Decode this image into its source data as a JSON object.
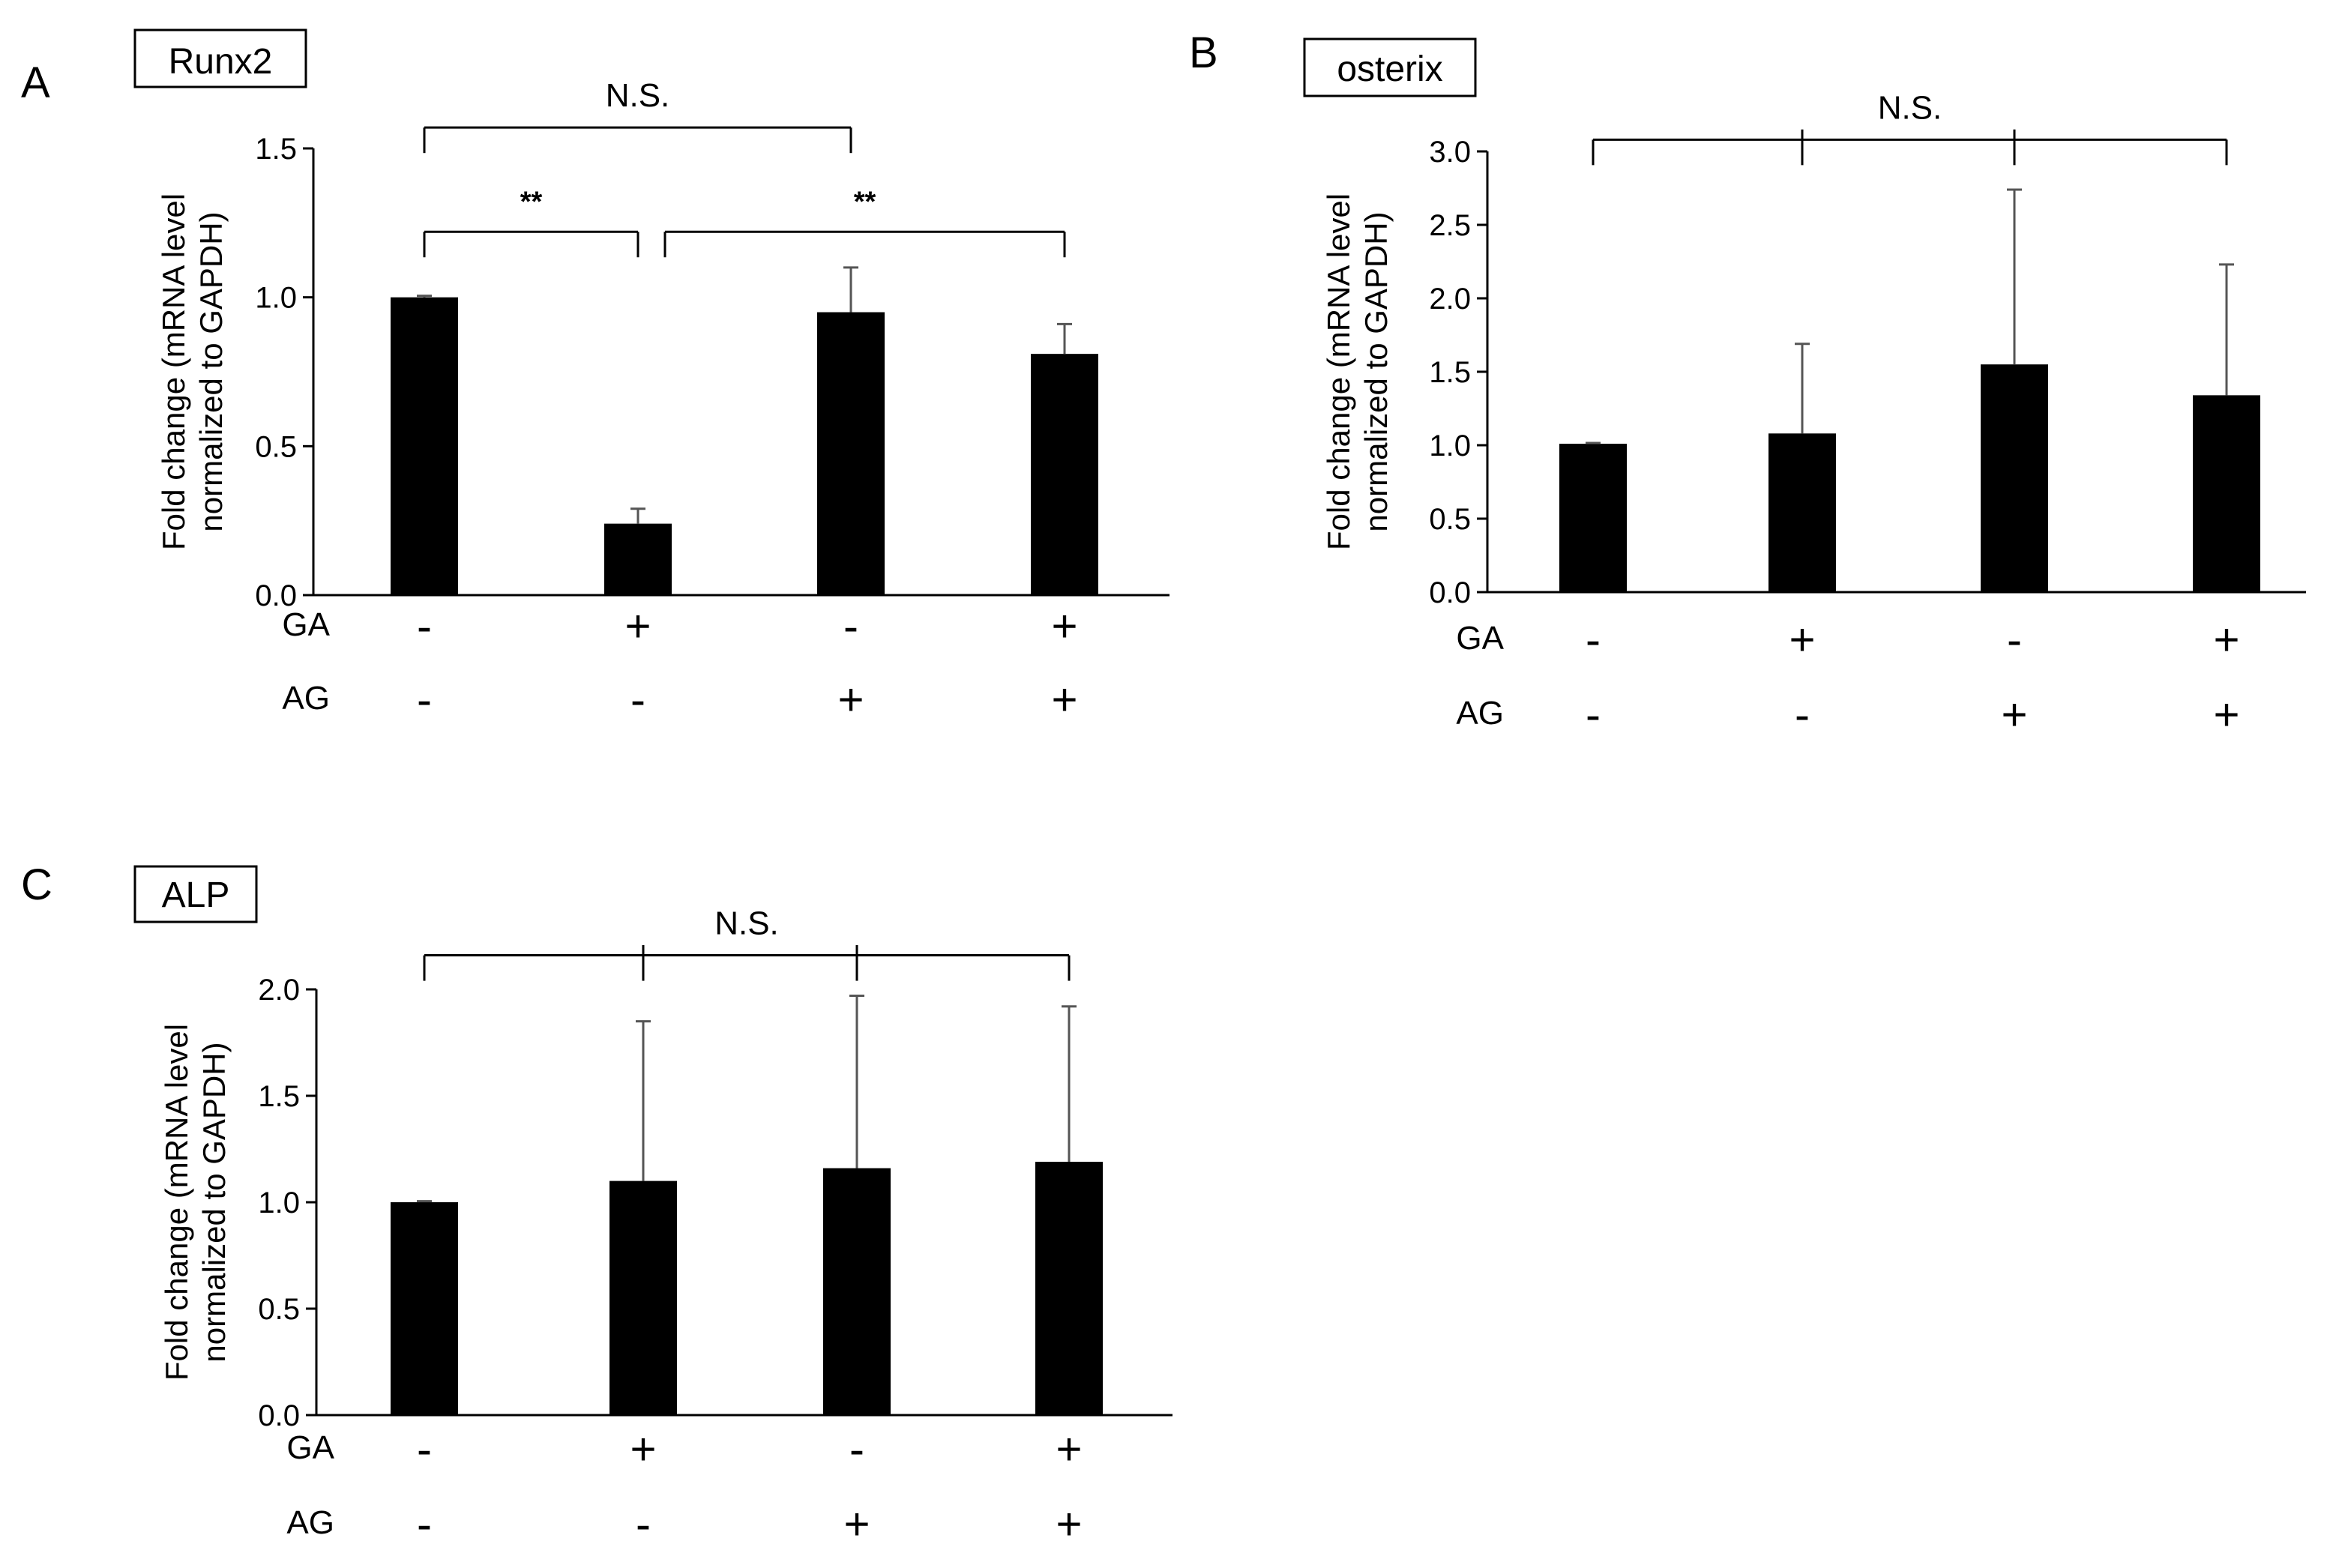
{
  "labels": {
    "row_ga": "GA",
    "row_ag": "AG"
  },
  "chart_data": [
    {
      "type": "bar",
      "panel": "A",
      "title": "Runx2",
      "xlabel": "",
      "ylabel": [
        "Fold change (mRNA level",
        "normalized to GAPDH)"
      ],
      "ylim": [
        0,
        1.5
      ],
      "yticks": [
        0.0,
        0.5,
        1.0,
        1.5
      ],
      "ytick_labels": [
        "0.0",
        "0.5",
        "1.0",
        "1.5"
      ],
      "conditions": {
        "GA": [
          "-",
          "+",
          "-",
          "+"
        ],
        "AG": [
          "-",
          "-",
          "+",
          "+"
        ]
      },
      "values": [
        1.0,
        0.24,
        0.95,
        0.81
      ],
      "errors": [
        0.005,
        0.05,
        0.15,
        0.1
      ],
      "significance": [
        {
          "groups": [
            0,
            2
          ],
          "label": "N.S.",
          "level": 1.57
        },
        {
          "groups": [
            0,
            1
          ],
          "label": "**",
          "level": 1.22
        },
        {
          "groups": [
            1,
            3
          ],
          "label": "**",
          "level": 1.22
        }
      ]
    },
    {
      "type": "bar",
      "panel": "B",
      "title": "osterix",
      "xlabel": "",
      "ylabel": [
        "Fold change (mRNA level",
        "normalized to GAPDH)"
      ],
      "ylim": [
        0,
        3.0
      ],
      "yticks": [
        0.0,
        0.5,
        1.0,
        1.5,
        2.0,
        2.5,
        3.0
      ],
      "ytick_labels": [
        "0.0",
        "0.5",
        "1.0",
        "1.5",
        "2.0",
        "2.5",
        "3.0"
      ],
      "conditions": {
        "GA": [
          "-",
          "+",
          "-",
          "+"
        ],
        "AG": [
          "-",
          "-",
          "+",
          "+"
        ]
      },
      "values": [
        1.01,
        1.08,
        1.55,
        1.34
      ],
      "errors": [
        0.005,
        0.61,
        1.19,
        0.89
      ],
      "significance": [
        {
          "groups": [
            0,
            1,
            2,
            3
          ],
          "label": "N.S.",
          "level": 3.08
        }
      ]
    },
    {
      "type": "bar",
      "panel": "C",
      "title": "ALP",
      "xlabel": "",
      "ylabel": [
        "Fold change (mRNA level",
        "normalized to GAPDH)"
      ],
      "ylim": [
        0,
        2.0
      ],
      "yticks": [
        0.0,
        0.5,
        1.0,
        1.5,
        2.0
      ],
      "ytick_labels": [
        "0.0",
        "0.5",
        "1.0",
        "1.5",
        "2.0"
      ],
      "conditions": {
        "GA": [
          "-",
          "+",
          "-",
          "+"
        ],
        "AG": [
          "-",
          "-",
          "+",
          "+"
        ]
      },
      "values": [
        1.0,
        1.1,
        1.16,
        1.19
      ],
      "errors": [
        0.005,
        0.75,
        0.81,
        0.73
      ],
      "significance": [
        {
          "groups": [
            0,
            1,
            2,
            3
          ],
          "label": "N.S.",
          "level": 2.16
        }
      ]
    }
  ]
}
